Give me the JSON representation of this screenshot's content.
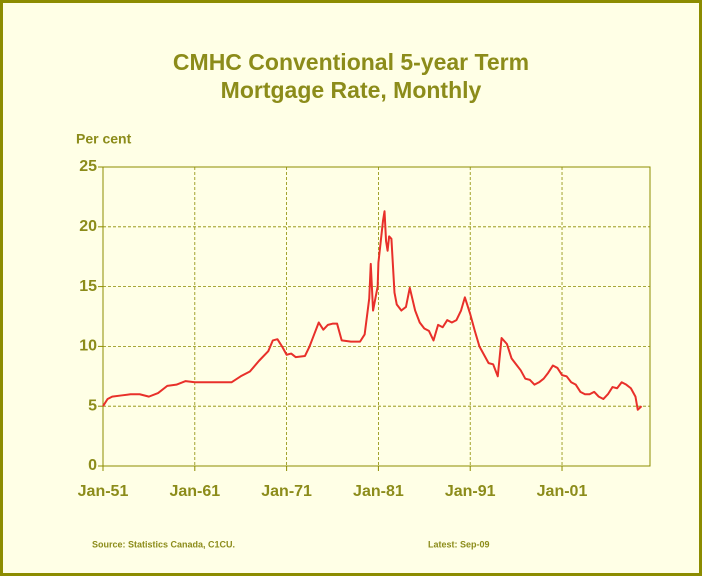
{
  "chart_data": {
    "type": "line",
    "title": "CMHC Conventional 5-year Term",
    "subtitle": "Mortgage Rate, Monthly",
    "y_label": "Per cent",
    "source": "Source: Statistics Canada, C1CU.",
    "latest": "Latest: Sep-09",
    "x": [
      "Jan-51",
      "Jul-51",
      "Jan-52",
      "Jan-53",
      "Jan-54",
      "Jan-55",
      "Jan-56",
      "Jan-57",
      "Jan-58",
      "Jan-59",
      "Jan-60",
      "Jan-61",
      "Jan-62",
      "Jan-63",
      "Jan-64",
      "Jan-65",
      "Jan-66",
      "Jan-67",
      "Jan-68",
      "Jan-69",
      "Jul-69",
      "Jan-70",
      "Jul-70",
      "Jan-71",
      "Jul-71",
      "Jan-72",
      "Jan-73",
      "Jul-73",
      "Jan-74",
      "Jul-74",
      "Jan-75",
      "Jul-75",
      "Jan-76",
      "Jul-76",
      "Jan-77",
      "Jan-78",
      "Jan-79",
      "Jul-79",
      "Oct-79",
      "Jan-80",
      "Mar-80",
      "Jun-80",
      "Sep-80",
      "Dec-80",
      "Jan-81",
      "Jul-81",
      "Sep-81",
      "Nov-81",
      "Jan-82",
      "Mar-82",
      "Jun-82",
      "Oct-82",
      "Jan-83",
      "Jul-83",
      "Jan-84",
      "Jun-84",
      "Jan-85",
      "Jul-85",
      "Jan-86",
      "Jul-86",
      "Jan-87",
      "Jul-87",
      "Jan-88",
      "Jul-88",
      "Jan-89",
      "Jul-89",
      "Jan-90",
      "Jun-90",
      "Jan-91",
      "Jul-91",
      "Jan-92",
      "Jul-92",
      "Jan-93",
      "Jul-93",
      "Jan-94",
      "Jun-94",
      "Jan-95",
      "Jul-95",
      "Jan-96",
      "Jul-96",
      "Jan-97",
      "Jul-97",
      "Jan-98",
      "Jul-98",
      "Jan-99",
      "Jul-99",
      "Jan-00",
      "Jul-00",
      "Jan-01",
      "Jul-01",
      "Jan-02",
      "Jul-02",
      "Jan-03",
      "Jul-03",
      "Jan-04",
      "Jul-04",
      "Jan-05",
      "Jul-05",
      "Jan-06",
      "Jul-06",
      "Jan-07",
      "Jul-07",
      "Jan-08",
      "Jul-08",
      "Jan-09",
      "Apr-09",
      "Sep-09"
    ],
    "series": [
      {
        "name": "Mortgage rate",
        "color": "#e8302a",
        "values": [
          5.0,
          5.6,
          5.8,
          5.9,
          6.0,
          6.0,
          5.8,
          6.1,
          6.7,
          6.8,
          7.1,
          7.0,
          7.0,
          7.0,
          7.0,
          7.0,
          7.5,
          7.9,
          8.8,
          9.6,
          10.5,
          10.6,
          10.0,
          9.3,
          9.4,
          9.1,
          9.2,
          10.0,
          11.0,
          12.0,
          11.4,
          11.8,
          11.9,
          11.9,
          10.5,
          10.4,
          10.4,
          11.0,
          12.5,
          14.0,
          16.9,
          13.0,
          14.0,
          15.0,
          17.0,
          20.5,
          21.3,
          18.8,
          18.0,
          19.2,
          19.0,
          14.5,
          13.5,
          13.0,
          13.3,
          14.9,
          13.0,
          12.0,
          11.5,
          11.3,
          10.5,
          11.8,
          11.6,
          12.2,
          12.0,
          12.2,
          13.0,
          14.1,
          12.7,
          11.3,
          10.0,
          9.3,
          8.6,
          8.5,
          7.5,
          10.7,
          10.2,
          9.0,
          8.5,
          8.0,
          7.3,
          7.2,
          6.8,
          7.0,
          7.3,
          7.8,
          8.4,
          8.2,
          7.6,
          7.5,
          7.0,
          6.8,
          6.2,
          6.0,
          6.0,
          6.2,
          5.8,
          5.6,
          6.0,
          6.6,
          6.5,
          7.0,
          6.8,
          6.5,
          5.8,
          4.7,
          5.0
        ]
      }
    ],
    "xlim": [
      "Jan-51",
      "Aug-10"
    ],
    "xticks": [
      "Jan-51",
      "Jan-61",
      "Jan-71",
      "Jan-81",
      "Jan-91",
      "Jan-01"
    ],
    "ylim": [
      0,
      25
    ],
    "yticks": [
      0,
      5,
      10,
      15,
      20,
      25
    ],
    "grid": true
  }
}
